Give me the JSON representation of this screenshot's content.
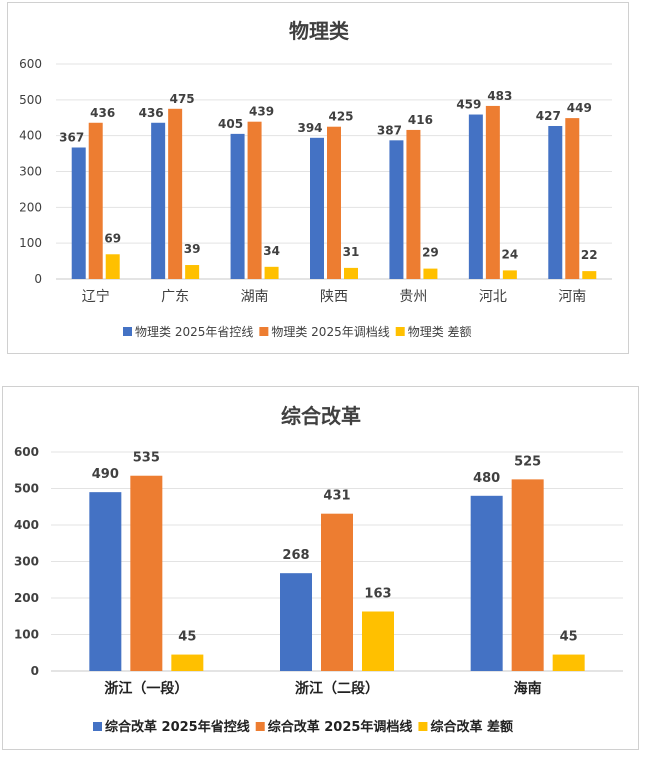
{
  "chart_data": [
    {
      "type": "bar",
      "title": "物理类",
      "categories": [
        "辽宁",
        "广东",
        "湖南",
        "陕西",
        "贵州",
        "河北",
        "河南"
      ],
      "series": [
        {
          "name": "物理类 2025年省控线",
          "color": "#4472C4",
          "values": [
            367,
            436,
            405,
            394,
            387,
            459,
            427
          ]
        },
        {
          "name": "物理类 2025年调档线",
          "color": "#ED7D31",
          "values": [
            436,
            475,
            439,
            425,
            416,
            483,
            449
          ]
        },
        {
          "name": "物理类 差额",
          "color": "#FFC000",
          "values": [
            69,
            39,
            34,
            31,
            29,
            24,
            22
          ]
        }
      ],
      "yticks": [
        0,
        100,
        200,
        300,
        400,
        500,
        600
      ],
      "ylim": [
        0,
        600
      ],
      "legend_position": "bottom",
      "grid": true
    },
    {
      "type": "bar",
      "title": "综合改革",
      "categories": [
        "浙江（一段）",
        "浙江（二段）",
        "海南"
      ],
      "series": [
        {
          "name": "综合改革 2025年省控线",
          "color": "#4472C4",
          "values": [
            490,
            268,
            480
          ]
        },
        {
          "name": "综合改革 2025年调档线",
          "color": "#ED7D31",
          "values": [
            535,
            431,
            525
          ]
        },
        {
          "name": "综合改革 差额",
          "color": "#FFC000",
          "values": [
            45,
            163,
            45
          ]
        }
      ],
      "yticks": [
        0,
        100,
        200,
        300,
        400,
        500,
        600
      ],
      "ylim": [
        0,
        600
      ],
      "legend_position": "bottom",
      "grid": true
    }
  ]
}
